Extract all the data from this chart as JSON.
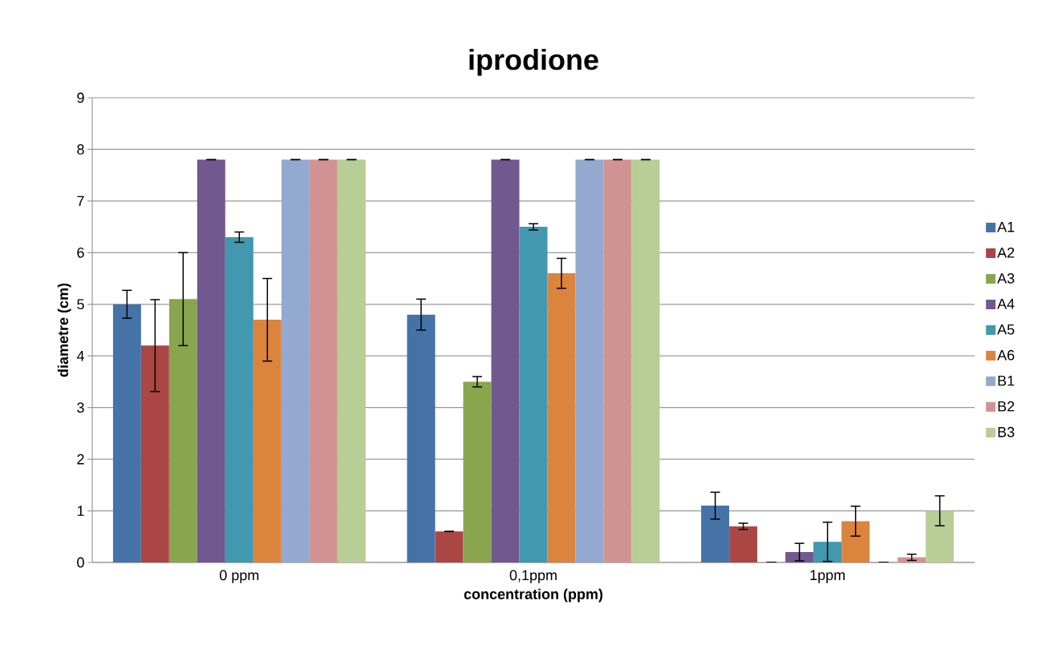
{
  "chart_data": {
    "type": "bar",
    "title": "iprodione",
    "xlabel": "concentration (ppm)",
    "ylabel": "diametre (cm)",
    "categories": [
      "0 ppm",
      "0,1ppm",
      "1ppm"
    ],
    "series": [
      {
        "name": "A1",
        "color": "#4572a7",
        "values": [
          5.0,
          4.8,
          1.1
        ],
        "errors": [
          0.27,
          0.3,
          0.26
        ]
      },
      {
        "name": "A2",
        "color": "#aa4643",
        "values": [
          4.2,
          0.6,
          0.7
        ],
        "errors": [
          0.89,
          0,
          0.06
        ]
      },
      {
        "name": "A3",
        "color": "#89a54e",
        "values": [
          5.1,
          3.5,
          0
        ],
        "errors": [
          0.9,
          0.1,
          0
        ]
      },
      {
        "name": "A4",
        "color": "#71588f",
        "values": [
          7.8,
          7.8,
          0.2
        ],
        "errors": [
          0,
          0,
          0.17
        ]
      },
      {
        "name": "A5",
        "color": "#4198af",
        "values": [
          6.3,
          6.5,
          0.4
        ],
        "errors": [
          0.1,
          0.06,
          0.38
        ]
      },
      {
        "name": "A6",
        "color": "#db843d",
        "values": [
          4.7,
          5.6,
          0.8
        ],
        "errors": [
          0.8,
          0.29,
          0.29
        ]
      },
      {
        "name": "B1",
        "color": "#93a9cf",
        "values": [
          7.8,
          7.8,
          0
        ],
        "errors": [
          0,
          0,
          0
        ]
      },
      {
        "name": "B2",
        "color": "#d19392",
        "values": [
          7.8,
          7.8,
          0.1
        ],
        "errors": [
          0,
          0,
          0.06
        ]
      },
      {
        "name": "B3",
        "color": "#b9cd96",
        "values": [
          7.8,
          7.8,
          1.0
        ],
        "errors": [
          0,
          0,
          0.29
        ]
      }
    ],
    "ylim": [
      0,
      9
    ],
    "yticks": [
      0,
      1,
      2,
      3,
      4,
      5,
      6,
      7,
      8,
      9
    ],
    "grid": "y",
    "legend": "right"
  }
}
